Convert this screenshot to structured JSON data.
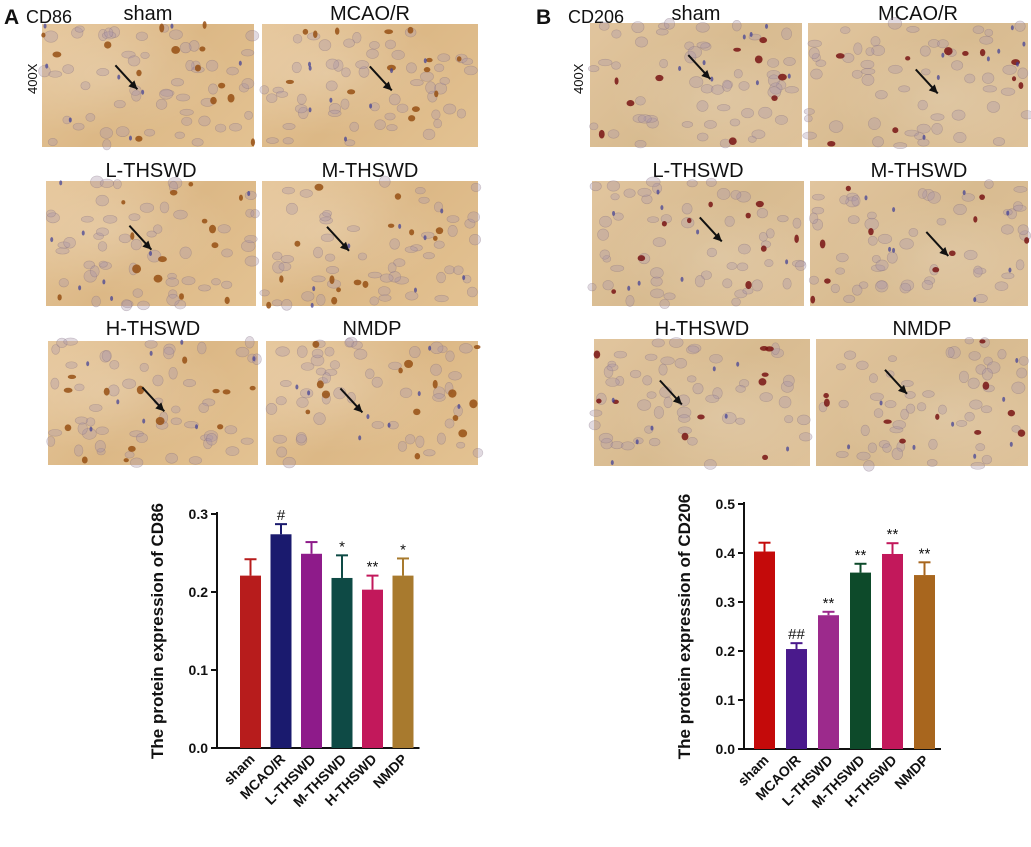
{
  "panels": [
    {
      "letter": "A",
      "marker": "CD86",
      "magnification": "400X",
      "images": [
        {
          "title": "sham"
        },
        {
          "title": "MCAO/R"
        },
        {
          "title": "L-THSWD"
        },
        {
          "title": "M-THSWD"
        },
        {
          "title": "H-THSWD"
        },
        {
          "title": "NMDP"
        }
      ]
    },
    {
      "letter": "B",
      "marker": "CD206",
      "magnification": "400X",
      "images": [
        {
          "title": "sham"
        },
        {
          "title": "MCAO/R"
        },
        {
          "title": "L-THSWD"
        },
        {
          "title": "M-THSWD"
        },
        {
          "title": "H-THSWD"
        },
        {
          "title": "NMDP"
        }
      ]
    }
  ],
  "chart_data": [
    {
      "type": "bar",
      "ylabel": "The protein expression of CD86",
      "categories": [
        "sham",
        "MCAO/R",
        "L-THSWD",
        "M-THSWD",
        "H-THSWD",
        "NMDP"
      ],
      "values": [
        0.221,
        0.274,
        0.249,
        0.218,
        0.203,
        0.221
      ],
      "errors": [
        0.021,
        0.013,
        0.015,
        0.029,
        0.018,
        0.022
      ],
      "annotations": [
        "",
        "#",
        "",
        "*",
        "**",
        "*"
      ],
      "colors": [
        "#b71c1c",
        "#1a1a6e",
        "#8e1b8a",
        "#0e4a45",
        "#c2185b",
        "#a87a2e"
      ],
      "ylim": [
        0,
        0.3
      ],
      "yticks": [
        "0.0",
        "0.1",
        "0.2",
        "0.3"
      ]
    },
    {
      "type": "bar",
      "ylabel": "The protein expression of CD206",
      "categories": [
        "sham",
        "MCAO/R",
        "L-THSWD",
        "M-THSWD",
        "H-THSWD",
        "NMDP"
      ],
      "values": [
        0.403,
        0.204,
        0.273,
        0.36,
        0.398,
        0.355
      ],
      "errors": [
        0.018,
        0.012,
        0.007,
        0.018,
        0.022,
        0.026
      ],
      "annotations": [
        "",
        "##",
        "**",
        "**",
        "**",
        "**"
      ],
      "colors": [
        "#c40a0a",
        "#4a1a8c",
        "#9c2a8c",
        "#0d4a2a",
        "#c2185b",
        "#a8661e"
      ],
      "ylim": [
        0,
        0.5
      ],
      "yticks": [
        "0.0",
        "0.1",
        "0.2",
        "0.3",
        "0.4",
        "0.5"
      ]
    }
  ]
}
